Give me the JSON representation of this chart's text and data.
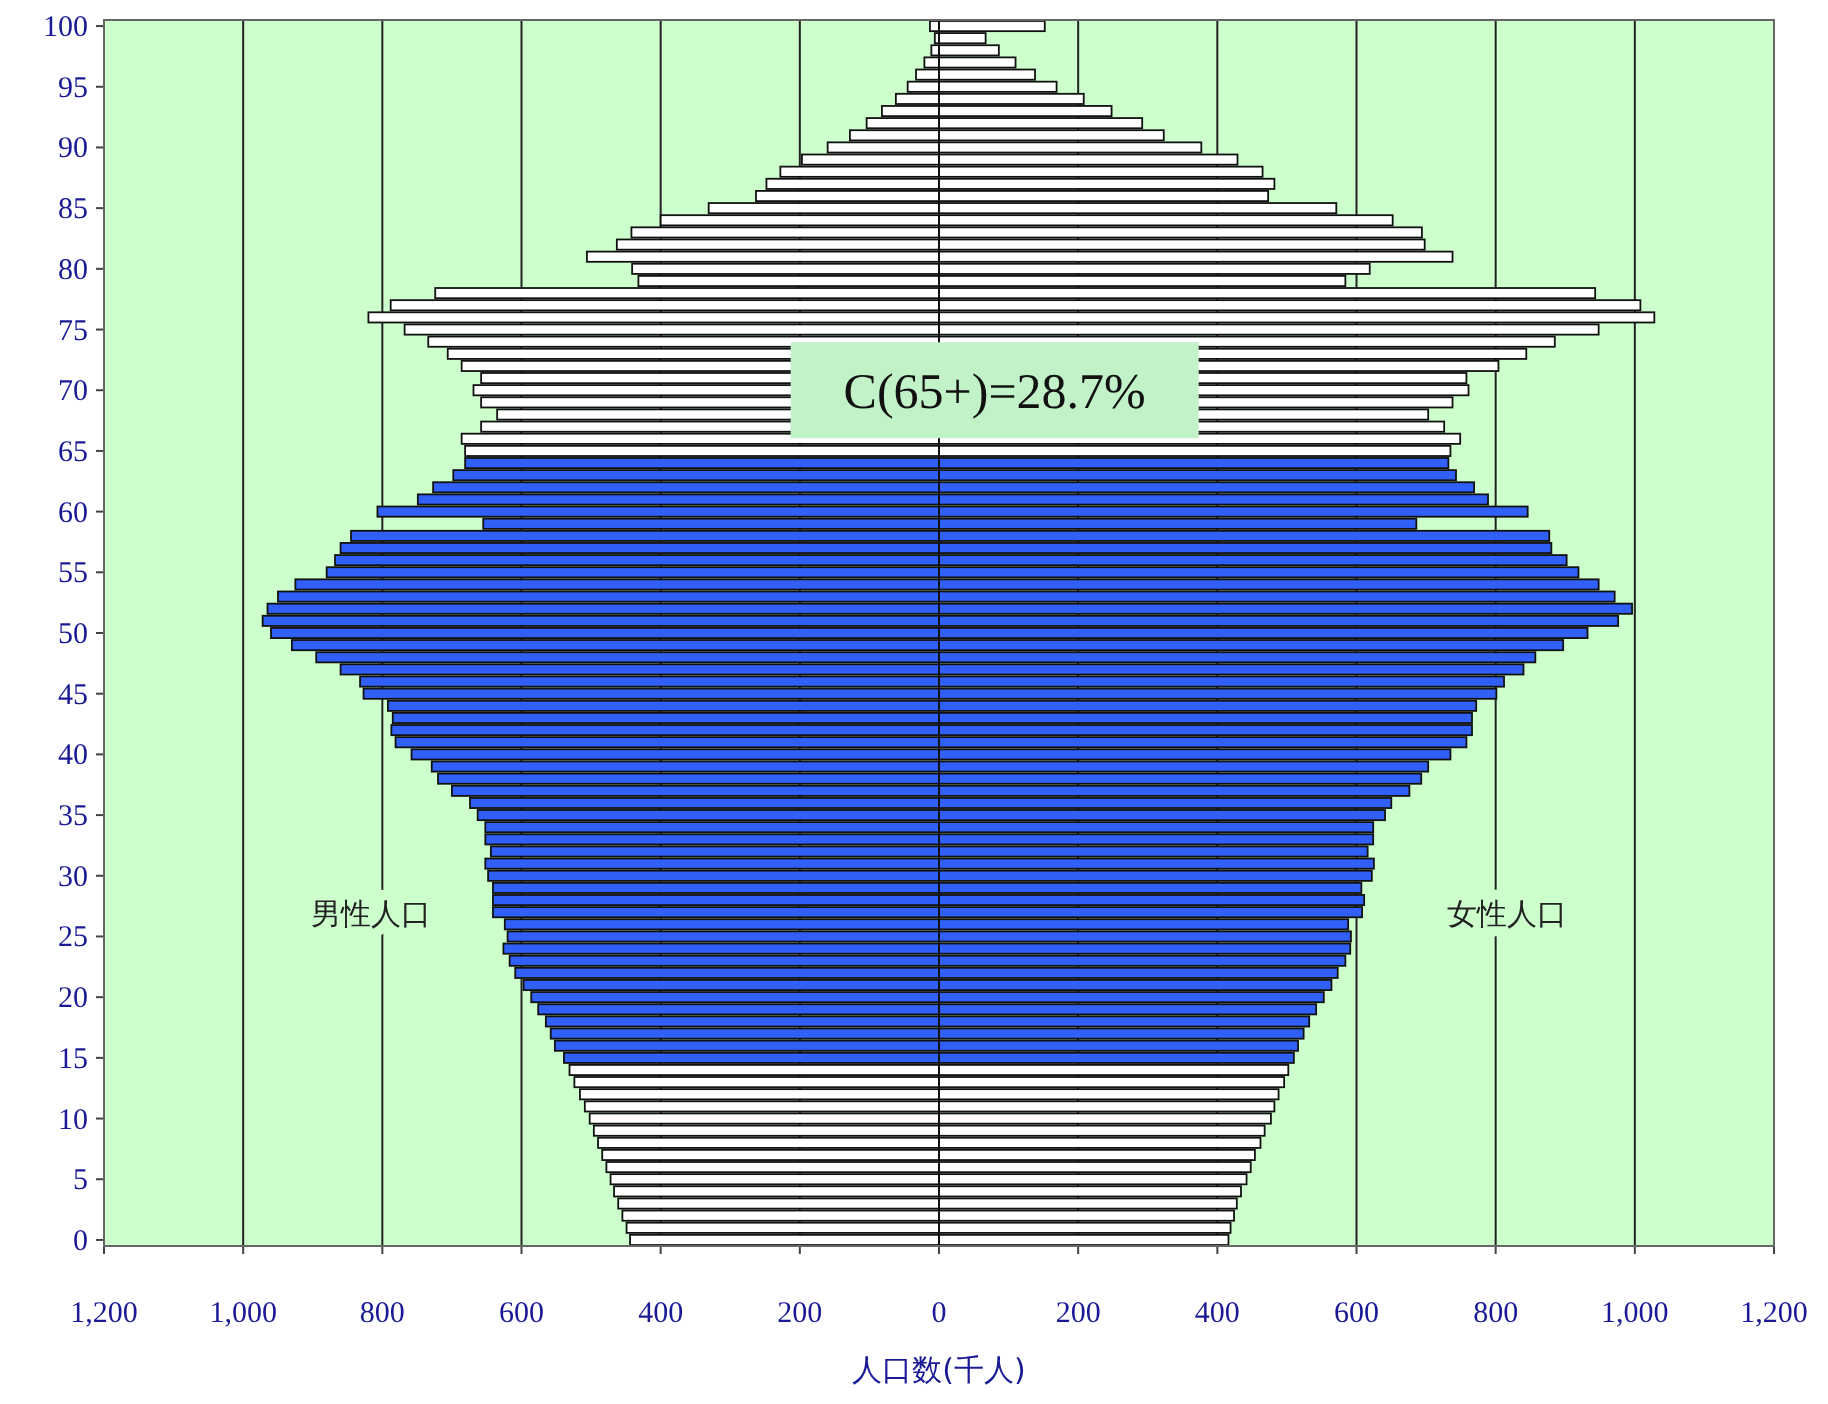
{
  "chart_data": {
    "type": "bar",
    "orientation": "horizontal",
    "stacked": true,
    "xlabel": "人口数(千人)",
    "categories": [
      "100",
      null,
      null,
      null,
      null,
      "95",
      null,
      null,
      null,
      null,
      "90",
      null,
      null,
      null,
      null,
      "85",
      null,
      null,
      null,
      null,
      "80",
      null,
      null,
      null,
      null,
      "75",
      null,
      null,
      null,
      null,
      "70",
      null,
      null,
      null,
      null,
      "65",
      null,
      null,
      null,
      null,
      "60",
      null,
      null,
      null,
      null,
      "55",
      null,
      null,
      null,
      null,
      "50",
      null,
      null,
      null,
      null,
      "45",
      null,
      null,
      null,
      null,
      "40",
      null,
      null,
      null,
      null,
      "35",
      null,
      null,
      null,
      null,
      "30",
      null,
      null,
      null,
      null,
      "25",
      null,
      null,
      null,
      null,
      "20",
      null,
      null,
      null,
      null,
      "15",
      null,
      null,
      null,
      null,
      "10",
      null,
      null,
      null,
      null,
      "5",
      null,
      null,
      null,
      null,
      "0"
    ],
    "xlim": [
      -1200,
      1200
    ],
    "xticks": [
      {
        "value": -1200,
        "label": "1,200"
      },
      {
        "value": -1000,
        "label": "1,000"
      },
      {
        "value": -800,
        "label": "800"
      },
      {
        "value": -600,
        "label": "600"
      },
      {
        "value": -400,
        "label": "400"
      },
      {
        "value": -200,
        "label": "200"
      },
      0,
      200,
      400,
      600,
      800,
      {
        "value": 1000,
        "label": "1,000"
      },
      {
        "value": 1200,
        "label": "1,200"
      }
    ],
    "grid": "x",
    "annotations": [
      {
        "text": "C(65+)=28.7%",
        "x": 80,
        "y": "70"
      }
    ],
    "series": [
      {
        "name": "男性人口",
        "values": [
          -13,
          -6,
          -11,
          -21,
          -33,
          -45,
          -62,
          -82,
          -104,
          -128,
          -160,
          -197,
          -228,
          -248,
          -263,
          -331,
          -400,
          -442,
          -463,
          -506,
          -441,
          -432,
          -724,
          -788,
          -820,
          -768,
          -734,
          -706,
          -686,
          -658,
          -669,
          -658,
          -635,
          -658,
          -686,
          -681,
          -681,
          -698,
          -727,
          -749,
          -807,
          -655,
          -845,
          -860,
          -868,
          -880,
          -925,
          -950,
          -965,
          -972,
          -960,
          -930,
          -895,
          -860,
          -832,
          -827,
          -792,
          -785,
          -787,
          -781,
          -758,
          -729,
          -720,
          -700,
          -674,
          -663,
          -652,
          -652,
          -644,
          -652,
          -648,
          -641,
          -641,
          -641,
          -624,
          -620,
          -626,
          -617,
          -609,
          -597,
          -586,
          -576,
          -565,
          -558,
          -552,
          -539,
          -531,
          -524,
          -516,
          -509,
          -502,
          -496,
          -490,
          -484,
          -478,
          -472,
          -467,
          -461,
          -455,
          -449,
          -444
        ],
        "colors": [
          "#ffffff",
          "#ffffff",
          "#ffffff",
          "#ffffff",
          "#ffffff",
          "#ffffff",
          "#ffffff",
          "#ffffff",
          "#ffffff",
          "#ffffff",
          "#ffffff",
          "#ffffff",
          "#ffffff",
          "#ffffff",
          "#ffffff",
          "#ffffff",
          "#ffffff",
          "#ffffff",
          "#ffffff",
          "#ffffff",
          "#ffffff",
          "#ffffff",
          "#ffffff",
          "#ffffff",
          "#ffffff",
          "#ffffff",
          "#ffffff",
          "#ffffff",
          "#ffffff",
          "#ffffff",
          "#ffffff",
          "#ffffff",
          "#ffffff",
          "#ffffff",
          "#ffffff",
          "#ffffff",
          "#3060f8",
          "#3060f8",
          "#3060f8",
          "#3060f8",
          "#3060f8",
          "#3060f8",
          "#3060f8",
          "#3060f8",
          "#3060f8",
          "#3060f8",
          "#3060f8",
          "#3060f8",
          "#3060f8",
          "#3060f8",
          "#3060f8",
          "#3060f8",
          "#3060f8",
          "#3060f8",
          "#3060f8",
          "#3060f8",
          "#3060f8",
          "#3060f8",
          "#3060f8",
          "#3060f8",
          "#3060f8",
          "#3060f8",
          "#3060f8",
          "#3060f8",
          "#3060f8",
          "#3060f8",
          "#3060f8",
          "#3060f8",
          "#3060f8",
          "#3060f8",
          "#3060f8",
          "#3060f8",
          "#3060f8",
          "#3060f8",
          "#3060f8",
          "#3060f8",
          "#3060f8",
          "#3060f8",
          "#3060f8",
          "#3060f8",
          "#3060f8",
          "#3060f8",
          "#3060f8",
          "#3060f8",
          "#3060f8",
          "#3060f8",
          "#ffffff",
          "#ffffff",
          "#ffffff",
          "#ffffff",
          "#ffffff",
          "#ffffff",
          "#ffffff",
          "#ffffff",
          "#ffffff",
          "#ffffff",
          "#ffffff",
          "#ffffff",
          "#ffffff",
          "#ffffff",
          "#ffffff"
        ]
      },
      {
        "name": "女性人口",
        "values": [
          152,
          67,
          86,
          110,
          138,
          169,
          208,
          248,
          292,
          323,
          377,
          429,
          465,
          482,
          473,
          571,
          652,
          694,
          698,
          738,
          619,
          584,
          943,
          1008,
          1028,
          948,
          885,
          844,
          804,
          758,
          761,
          738,
          703,
          726,
          749,
          735,
          732,
          743,
          769,
          789,
          846,
          686,
          877,
          880,
          902,
          919,
          948,
          971,
          996,
          976,
          932,
          897,
          857,
          840,
          812,
          801,
          772,
          766,
          766,
          758,
          735,
          703,
          693,
          676,
          650,
          641,
          624,
          624,
          616,
          625,
          622,
          607,
          611,
          608,
          588,
          592,
          591,
          584,
          573,
          564,
          553,
          542,
          532,
          524,
          516,
          510,
          502,
          496,
          488,
          482,
          477,
          468,
          462,
          454,
          448,
          442,
          434,
          428,
          424,
          419,
          416
        ],
        "colors": [
          "#ffffff",
          "#ffffff",
          "#ffffff",
          "#ffffff",
          "#ffffff",
          "#ffffff",
          "#ffffff",
          "#ffffff",
          "#ffffff",
          "#ffffff",
          "#ffffff",
          "#ffffff",
          "#ffffff",
          "#ffffff",
          "#ffffff",
          "#ffffff",
          "#ffffff",
          "#ffffff",
          "#ffffff",
          "#ffffff",
          "#ffffff",
          "#ffffff",
          "#ffffff",
          "#ffffff",
          "#ffffff",
          "#ffffff",
          "#ffffff",
          "#ffffff",
          "#ffffff",
          "#ffffff",
          "#ffffff",
          "#ffffff",
          "#ffffff",
          "#ffffff",
          "#ffffff",
          "#ffffff",
          "#3060f8",
          "#3060f8",
          "#3060f8",
          "#3060f8",
          "#3060f8",
          "#3060f8",
          "#3060f8",
          "#3060f8",
          "#3060f8",
          "#3060f8",
          "#3060f8",
          "#3060f8",
          "#3060f8",
          "#3060f8",
          "#3060f8",
          "#3060f8",
          "#3060f8",
          "#3060f8",
          "#3060f8",
          "#3060f8",
          "#3060f8",
          "#3060f8",
          "#3060f8",
          "#3060f8",
          "#3060f8",
          "#3060f8",
          "#3060f8",
          "#3060f8",
          "#3060f8",
          "#3060f8",
          "#3060f8",
          "#3060f8",
          "#3060f8",
          "#3060f8",
          "#3060f8",
          "#3060f8",
          "#3060f8",
          "#3060f8",
          "#3060f8",
          "#3060f8",
          "#3060f8",
          "#3060f8",
          "#3060f8",
          "#3060f8",
          "#3060f8",
          "#3060f8",
          "#3060f8",
          "#3060f8",
          "#3060f8",
          "#3060f8",
          "#ffffff",
          "#ffffff",
          "#ffffff",
          "#ffffff",
          "#ffffff",
          "#ffffff",
          "#ffffff",
          "#ffffff",
          "#ffffff",
          "#ffffff",
          "#ffffff",
          "#ffffff",
          "#ffffff",
          "#ffffff",
          "#ffffff"
        ]
      }
    ]
  }
}
